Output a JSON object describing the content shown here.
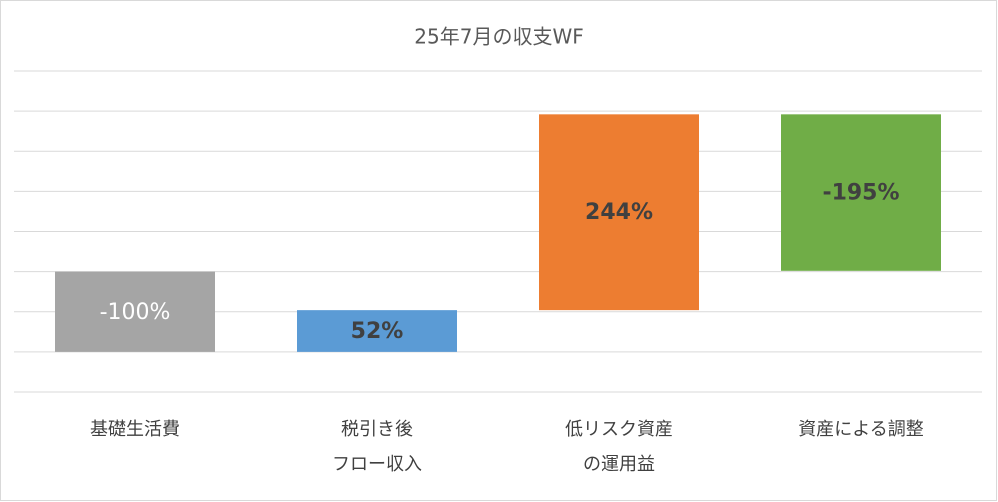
{
  "chart_data": {
    "type": "waterfall",
    "title": "25年7月の収支WF",
    "categories": [
      "基礎生活費",
      "税引き後\nフロー収入",
      "低リスク資産\nの運用益",
      "資産による調整"
    ],
    "values": [
      -100,
      52,
      244,
      -195
    ],
    "value_labels": [
      "-100%",
      "52%",
      "244%",
      "-195%"
    ],
    "colors": [
      "#a5a5a5",
      "#5b9bd5",
      "#ed7d31",
      "#70ad47"
    ],
    "value_label_colors": [
      "#ffffff",
      "#404040",
      "#404040",
      "#404040"
    ],
    "ylim": [
      -150,
      250
    ],
    "yticks": [
      -150,
      -100,
      -50,
      0,
      50,
      100,
      150,
      200,
      250
    ],
    "grid": true
  }
}
